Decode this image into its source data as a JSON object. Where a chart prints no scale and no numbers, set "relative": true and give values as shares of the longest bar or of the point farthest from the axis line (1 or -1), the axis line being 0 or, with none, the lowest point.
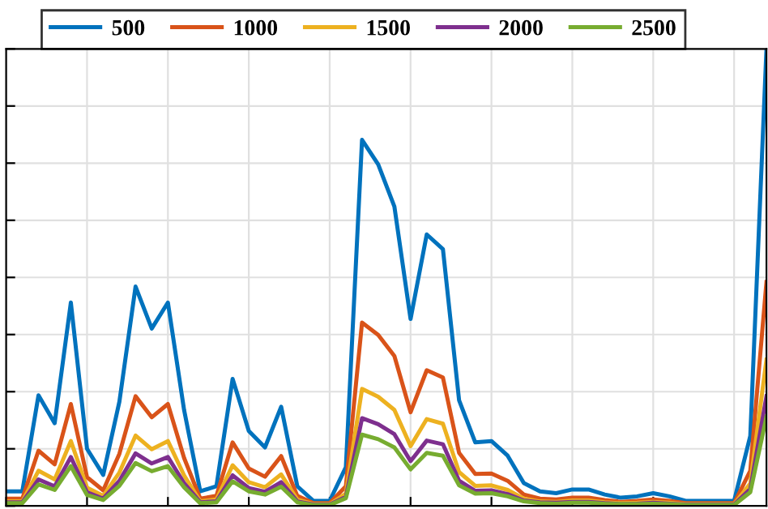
{
  "chart_data": {
    "type": "line",
    "relative": true,
    "grid": true,
    "legend": "top",
    "categories": [
      null,
      null,
      null,
      null,
      null,
      null,
      null,
      null,
      null,
      null,
      null,
      null,
      null,
      null,
      null,
      null,
      null,
      null,
      null,
      null,
      null,
      null,
      null,
      null,
      null,
      null,
      null,
      null,
      null,
      null,
      null,
      null,
      null,
      null,
      null,
      null,
      null,
      null,
      null,
      null,
      null,
      null,
      null,
      null,
      null,
      null,
      null,
      null
    ],
    "series": [
      {
        "name": "500",
        "color": "#0072bd",
        "values": [
          0.032,
          0.032,
          0.242,
          0.181,
          0.445,
          0.125,
          0.068,
          0.228,
          0.48,
          0.388,
          0.445,
          0.21,
          0.032,
          0.043,
          0.278,
          0.164,
          0.128,
          0.217,
          0.043,
          0.011,
          0.011,
          0.085,
          0.801,
          0.747,
          0.655,
          0.409,
          0.594,
          0.562,
          0.231,
          0.139,
          0.142,
          0.11,
          0.05,
          0.032,
          0.028,
          0.036,
          0.036,
          0.025,
          0.018,
          0.021,
          0.028,
          0.021,
          0.011,
          0.011,
          0.011,
          0.011,
          0.153,
          1.0
        ]
      },
      {
        "name": "1000",
        "color": "#d95319",
        "values": [
          0.016,
          0.016,
          0.121,
          0.091,
          0.223,
          0.063,
          0.034,
          0.114,
          0.24,
          0.194,
          0.223,
          0.105,
          0.016,
          0.022,
          0.139,
          0.082,
          0.064,
          0.109,
          0.022,
          0.006,
          0.006,
          0.043,
          0.401,
          0.374,
          0.328,
          0.205,
          0.297,
          0.281,
          0.116,
          0.07,
          0.071,
          0.055,
          0.025,
          0.016,
          0.014,
          0.018,
          0.018,
          0.013,
          0.009,
          0.011,
          0.014,
          0.011,
          0.006,
          0.006,
          0.006,
          0.006,
          0.077,
          0.49
        ]
      },
      {
        "name": "1500",
        "color": "#edb120",
        "values": [
          0.01,
          0.01,
          0.077,
          0.058,
          0.142,
          0.04,
          0.022,
          0.073,
          0.154,
          0.124,
          0.142,
          0.067,
          0.01,
          0.014,
          0.089,
          0.052,
          0.041,
          0.069,
          0.014,
          0.004,
          0.004,
          0.027,
          0.256,
          0.239,
          0.21,
          0.131,
          0.19,
          0.18,
          0.074,
          0.044,
          0.045,
          0.035,
          0.016,
          0.01,
          0.009,
          0.012,
          0.012,
          0.008,
          0.006,
          0.007,
          0.009,
          0.007,
          0.004,
          0.004,
          0.004,
          0.004,
          0.049,
          0.32
        ]
      },
      {
        "name": "2000",
        "color": "#7e2f8e",
        "values": [
          0.008,
          0.008,
          0.058,
          0.043,
          0.107,
          0.03,
          0.016,
          0.055,
          0.115,
          0.093,
          0.107,
          0.05,
          0.008,
          0.01,
          0.067,
          0.039,
          0.031,
          0.052,
          0.01,
          0.003,
          0.003,
          0.02,
          0.192,
          0.179,
          0.157,
          0.098,
          0.143,
          0.135,
          0.055,
          0.033,
          0.034,
          0.026,
          0.012,
          0.008,
          0.007,
          0.009,
          0.009,
          0.006,
          0.004,
          0.005,
          0.007,
          0.005,
          0.003,
          0.003,
          0.003,
          0.003,
          0.037,
          0.24
        ]
      },
      {
        "name": "2500",
        "color": "#77ac30",
        "values": [
          0.006,
          0.006,
          0.047,
          0.035,
          0.087,
          0.024,
          0.013,
          0.044,
          0.094,
          0.076,
          0.087,
          0.041,
          0.006,
          0.008,
          0.054,
          0.032,
          0.025,
          0.042,
          0.008,
          0.002,
          0.002,
          0.017,
          0.156,
          0.146,
          0.128,
          0.08,
          0.116,
          0.11,
          0.045,
          0.027,
          0.028,
          0.021,
          0.01,
          0.006,
          0.005,
          0.007,
          0.007,
          0.005,
          0.004,
          0.004,
          0.005,
          0.004,
          0.002,
          0.002,
          0.002,
          0.002,
          0.03,
          0.195
        ]
      }
    ]
  }
}
